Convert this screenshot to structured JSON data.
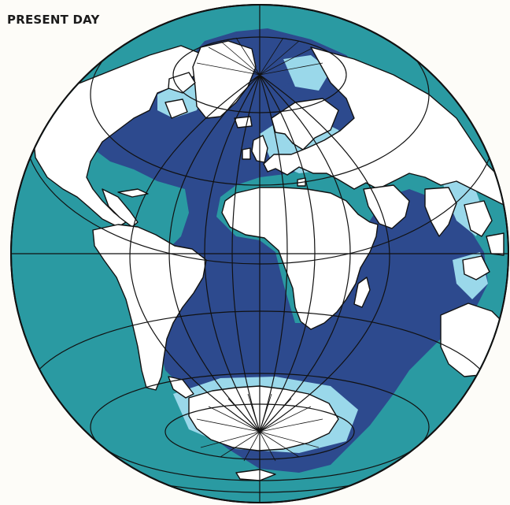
{
  "caption": "PRESENT DAY",
  "colors": {
    "background": "#fdfcf8",
    "shallow_ocean": "#2a9aa2",
    "deep_ocean": "#2d4a8e",
    "continental_shelf": "#9ad8ea",
    "land": "#ffffff",
    "graticule": "#111111"
  }
}
